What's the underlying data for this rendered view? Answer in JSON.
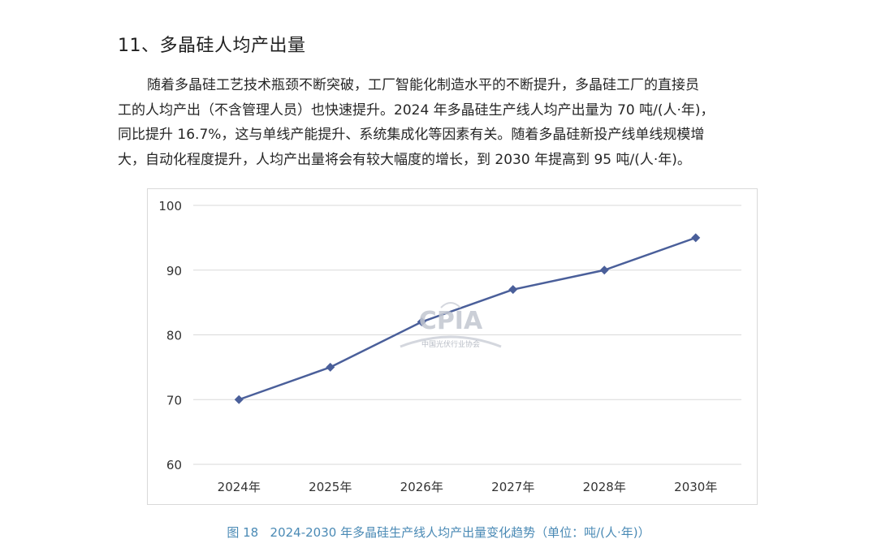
{
  "heading": "11、多晶硅人均产出量",
  "paragraph": [
    "随着多晶硅工艺技术瓶颈不断突破，工厂智能化制造水平的不断提升，多晶硅工厂的直接员",
    "工的人均产出（不含管理人员）也快速提升。2024 年多晶硅生产线人均产出量为 70 吨/(人·年)，",
    "同比提升 16.7%，这与单线产能提升、系统集成化等因素有关。随着多晶硅新投产线单线规模增",
    "大，自动化程度提升，人均产出量将会有较大幅度的增长，到 2030 年提高到 95 吨/(人·年)。"
  ],
  "watermark": {
    "logo_text": "CPIA",
    "org_name": "中国光伏行业协会"
  },
  "chart_data": {
    "type": "line",
    "categories": [
      "2024年",
      "2025年",
      "2026年",
      "2027年",
      "2028年",
      "2030年"
    ],
    "series": [
      {
        "values": [
          70,
          75,
          82,
          87,
          90,
          95
        ],
        "color": "#4a5f9a",
        "marker": "diamond"
      }
    ],
    "ylim": [
      60,
      100
    ],
    "yticks": [
      60,
      70,
      80,
      90,
      100
    ],
    "grid": "horizontal",
    "legend": "none",
    "title": "",
    "xlabel": "",
    "ylabel": ""
  },
  "caption": {
    "figure_no": "图 18",
    "text": "2024-2030 年多晶硅生产线人均产出量变化趋势（单位：吨/(人·年)）"
  },
  "colors": {
    "line": "#4a5f9a",
    "caption": "#4a8ab5",
    "grid": "#d9d9d9"
  }
}
